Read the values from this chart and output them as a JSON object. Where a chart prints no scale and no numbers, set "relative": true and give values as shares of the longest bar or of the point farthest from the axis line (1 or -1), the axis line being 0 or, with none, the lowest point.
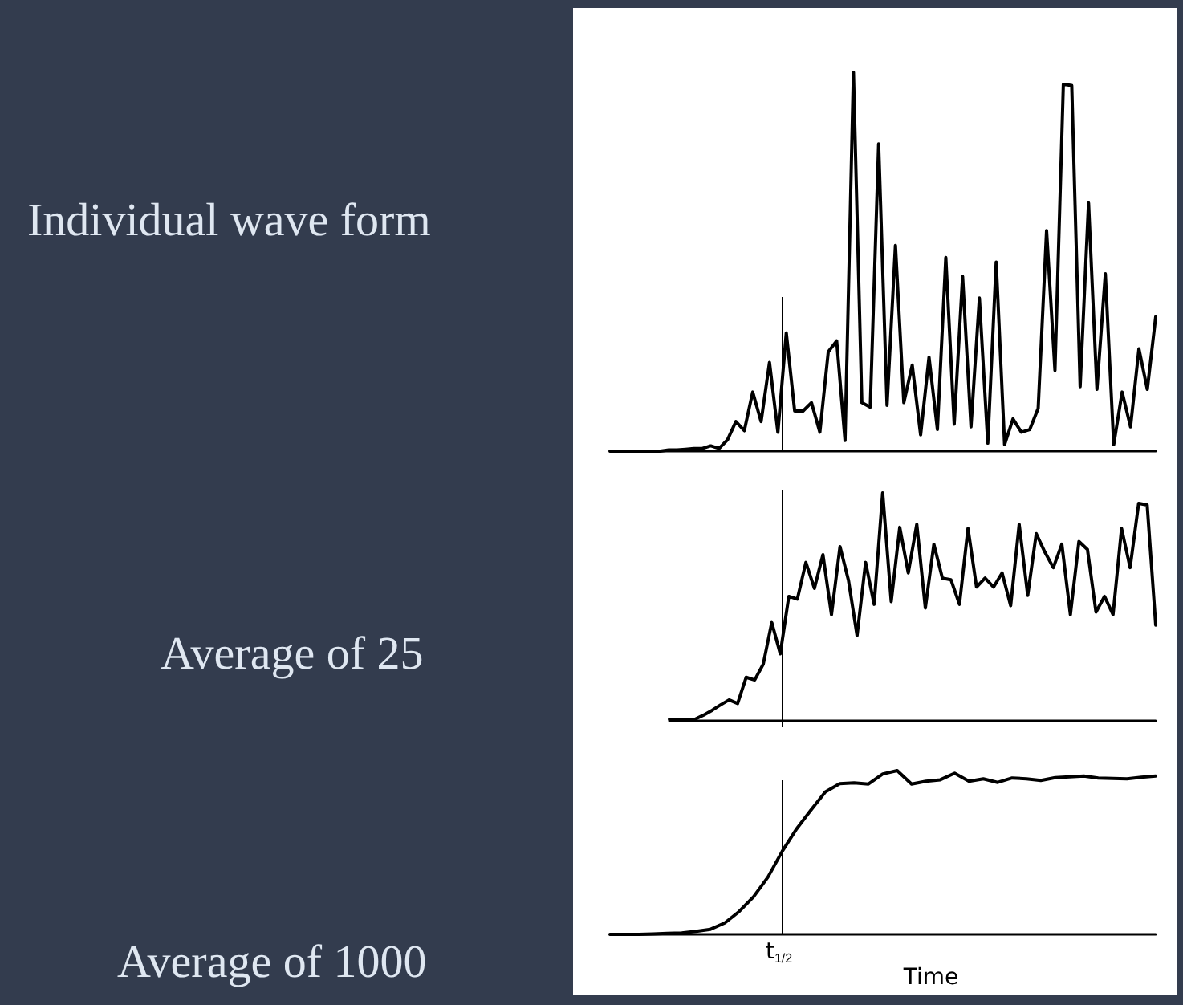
{
  "chart_data": [
    {
      "type": "line",
      "title": "Individual wave form",
      "relative": true,
      "marker": "none",
      "line_style": "solid",
      "grid": false,
      "categories": [
        null,
        null,
        null,
        null,
        null,
        null,
        null,
        null,
        null,
        null,
        null,
        null,
        null,
        null,
        null,
        null,
        null,
        null,
        null,
        null,
        null,
        null,
        null,
        null,
        null,
        null,
        null,
        null,
        null,
        null,
        null,
        null,
        null,
        null,
        null,
        null,
        null,
        null,
        null,
        null,
        null,
        null,
        null,
        null,
        null,
        null,
        null,
        null,
        null,
        null,
        null,
        null,
        null,
        null,
        null,
        null,
        null,
        null,
        null,
        null,
        null,
        null,
        null,
        null,
        null,
        null
      ],
      "series": [
        {
          "color": "#000000",
          "values": [
            0,
            0,
            0,
            0,
            0,
            0,
            0,
            0.003,
            0.003,
            0.005,
            0.007,
            0.007,
            0.014,
            0.007,
            0.03,
            0.078,
            0.054,
            0.156,
            0.078,
            0.234,
            0.05,
            0.312,
            0.106,
            0.106,
            0.128,
            0.05,
            0.262,
            0.291,
            0.028,
            1,
            0.128,
            0.116,
            0.811,
            0.121,
            0.543,
            0.128,
            0.227,
            0.043,
            0.248,
            0.057,
            0.511,
            0.071,
            0.461,
            0.064,
            0.404,
            0.021,
            0.499,
            0.017,
            0.085,
            0.05,
            0.057,
            0.113,
            0.582,
            0.213,
            0.968,
            0.965,
            0.17,
            0.655,
            0.163,
            0.468,
            0.017,
            0.156,
            0.064,
            0.27,
            0.163,
            0.355
          ]
        }
      ]
    },
    {
      "type": "line",
      "title": "Average of 25",
      "relative": true,
      "marker": "none",
      "line_style": "solid",
      "grid": false,
      "categories": [
        null,
        null,
        null,
        null,
        null,
        null,
        null,
        null,
        null,
        null,
        null,
        null,
        null,
        null,
        null,
        null,
        null,
        null,
        null,
        null,
        null,
        null,
        null,
        null,
        null,
        null,
        null,
        null,
        null,
        null,
        null,
        null,
        null,
        null,
        null,
        null,
        null,
        null,
        null,
        null,
        null,
        null,
        null,
        null,
        null,
        null,
        null,
        null,
        null,
        null,
        null,
        null,
        null,
        null,
        null,
        null,
        null,
        null
      ],
      "series": [
        {
          "color": "#000000",
          "values": [
            0.007,
            0.007,
            0.007,
            0.007,
            0.025,
            0.046,
            0.07,
            0.092,
            0.076,
            0.191,
            0.179,
            0.248,
            0.431,
            0.294,
            0.546,
            0.534,
            0.695,
            0.581,
            0.729,
            0.466,
            0.764,
            0.615,
            0.374,
            0.695,
            0.511,
            1,
            0.523,
            0.849,
            0.649,
            0.862,
            0.495,
            0.775,
            0.626,
            0.619,
            0.511,
            0.844,
            0.587,
            0.626,
            0.587,
            0.649,
            0.505,
            0.862,
            0.55,
            0.821,
            0.741,
            0.672,
            0.775,
            0.466,
            0.787,
            0.752,
            0.477,
            0.546,
            0.466,
            0.844,
            0.672,
            0.954,
            0.947,
            0.42
          ]
        }
      ]
    },
    {
      "type": "line",
      "title": "Average of 1000",
      "xlabel": "Time",
      "relative": true,
      "marker": "none",
      "line_style": "solid",
      "grid": false,
      "categories": [
        null,
        null,
        null,
        null,
        null,
        null,
        null,
        null,
        null,
        null,
        null,
        null,
        null,
        null,
        null,
        null,
        null,
        null,
        null,
        null,
        null,
        null,
        null,
        null,
        null,
        null,
        null,
        null,
        null,
        null,
        null,
        null,
        null,
        null,
        null,
        null,
        null,
        null,
        null
      ],
      "series": [
        {
          "color": "#000000",
          "values": [
            0,
            0,
            0,
            0.003,
            0.006,
            0.009,
            0.018,
            0.031,
            0.07,
            0.14,
            0.23,
            0.35,
            0.508,
            0.645,
            0.76,
            0.87,
            0.92,
            0.925,
            0.918,
            0.98,
            1,
            0.918,
            0.935,
            0.944,
            0.984,
            0.935,
            0.95,
            0.928,
            0.955,
            0.95,
            0.94,
            0.957,
            0.962,
            0.967,
            0.955,
            0.952,
            0.95,
            0.96,
            0.967
          ]
        }
      ],
      "annotations": [
        "t$_{1/2}$"
      ]
    }
  ]
}
